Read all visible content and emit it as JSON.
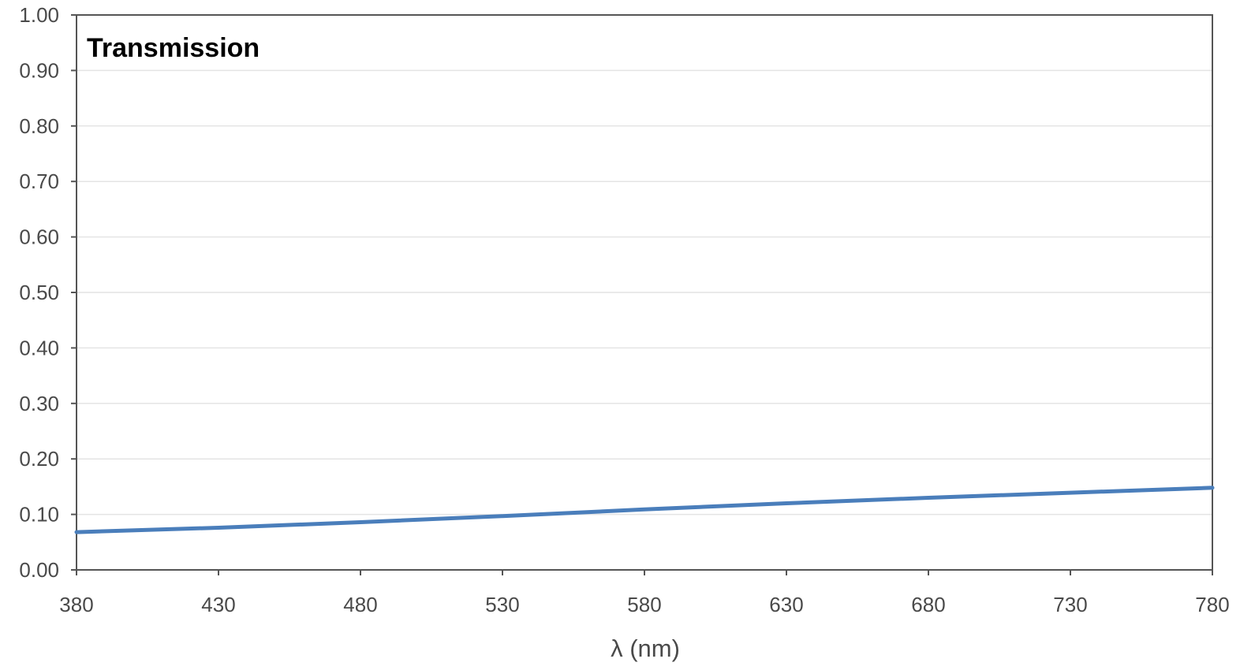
{
  "chart_data": {
    "type": "line",
    "title": "Transmission",
    "xlabel": "λ (nm)",
    "ylabel": "",
    "xlim": [
      380,
      780
    ],
    "ylim": [
      0,
      1
    ],
    "x_ticks": [
      380,
      430,
      480,
      530,
      580,
      630,
      680,
      730,
      780
    ],
    "x_tick_labels": [
      "380",
      "430",
      "480",
      "530",
      "580",
      "630",
      "680",
      "730",
      "780"
    ],
    "y_ticks": [
      0,
      0.1,
      0.2,
      0.3,
      0.4,
      0.5,
      0.6,
      0.7,
      0.8,
      0.9,
      1.0
    ],
    "y_tick_labels": [
      "0.00",
      "0.10",
      "0.20",
      "0.30",
      "0.40",
      "0.50",
      "0.60",
      "0.70",
      "0.80",
      "0.90",
      "1.00"
    ],
    "grid": true,
    "legend": "none",
    "colors": {
      "series": "#4a7ebb",
      "grid": "#e4e4e4",
      "frame": "#555555"
    },
    "series": [
      {
        "x": [
          380,
          430,
          480,
          530,
          580,
          630,
          680,
          730,
          780
        ],
        "y": [
          0.068,
          0.076,
          0.086,
          0.097,
          0.109,
          0.12,
          0.13,
          0.139,
          0.148
        ]
      }
    ]
  }
}
